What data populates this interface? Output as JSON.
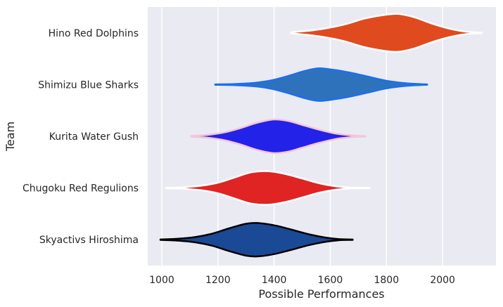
{
  "chart_data": {
    "type": "violin",
    "orientation": "horizontal",
    "xlabel": "Possible Performances",
    "ylabel": "Team",
    "xlim": [
      950,
      2190
    ],
    "xticks": [
      1000,
      1200,
      1400,
      1600,
      1800,
      2000
    ],
    "grid": "vertical",
    "background_color": "#eaeaf2",
    "categories": [
      "Hino Red Dolphins",
      "Shimizu Blue Sharks",
      "Kurita Water Gush",
      "Chugoku Red Regulions",
      "Skyactivs Hiroshima"
    ],
    "series": [
      {
        "fill": "#e04a1f",
        "edge": "#ffffff",
        "x": [
          1460,
          1540,
          1600,
          1660,
          1720,
          1780,
          1840,
          1900,
          1960,
          2020,
          2080,
          2140
        ],
        "density": [
          0.03,
          0.14,
          0.28,
          0.48,
          0.75,
          0.92,
          1.0,
          0.82,
          0.5,
          0.24,
          0.07,
          0.01
        ]
      },
      {
        "fill": "#2f72bc",
        "edge": "#1a6ff0",
        "x": [
          1190,
          1260,
          1330,
          1390,
          1450,
          1510,
          1560,
          1620,
          1680,
          1740,
          1800,
          1870,
          1945
        ],
        "density": [
          0.01,
          0.03,
          0.09,
          0.22,
          0.45,
          0.72,
          0.86,
          0.76,
          0.6,
          0.4,
          0.2,
          0.07,
          0.01
        ]
      },
      {
        "fill": "#2222e8",
        "edge": "#f6c4d8",
        "x": [
          1105,
          1160,
          1220,
          1280,
          1340,
          1400,
          1450,
          1500,
          1560,
          1620,
          1680,
          1725
        ],
        "density": [
          0.02,
          0.07,
          0.2,
          0.43,
          0.72,
          0.89,
          0.81,
          0.6,
          0.35,
          0.14,
          0.04,
          0.01
        ]
      },
      {
        "fill": "#e02424",
        "edge": "#ffffff",
        "x": [
          1015,
          1080,
          1140,
          1200,
          1260,
          1320,
          1380,
          1440,
          1500,
          1560,
          1620,
          1680,
          1740
        ],
        "density": [
          0.01,
          0.04,
          0.12,
          0.28,
          0.56,
          0.83,
          0.88,
          0.74,
          0.5,
          0.25,
          0.09,
          0.02,
          0.01
        ]
      },
      {
        "fill": "#1a4a96",
        "edge": "#000000",
        "x": [
          995,
          1060,
          1120,
          1180,
          1240,
          1300,
          1340,
          1400,
          1460,
          1520,
          1580,
          1630,
          1680
        ],
        "density": [
          0.01,
          0.05,
          0.14,
          0.32,
          0.6,
          0.84,
          0.88,
          0.76,
          0.54,
          0.3,
          0.12,
          0.03,
          0.01
        ]
      }
    ]
  }
}
